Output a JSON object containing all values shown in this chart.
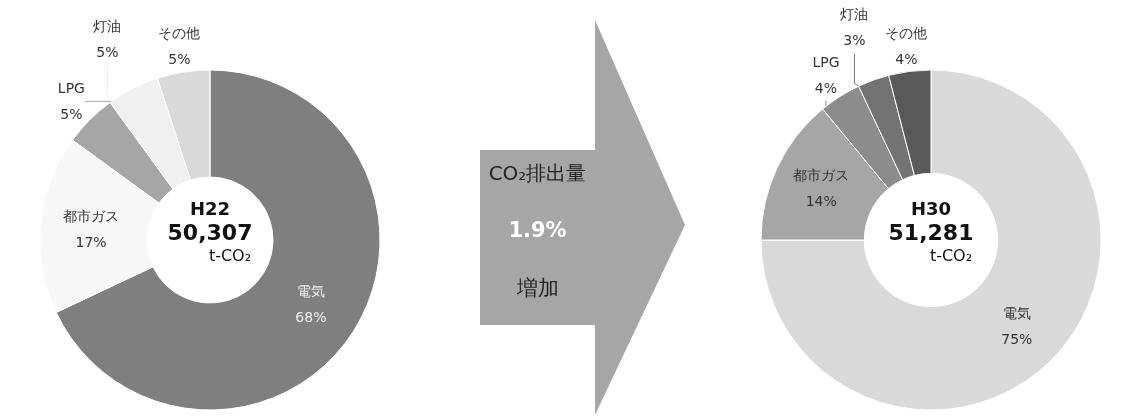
{
  "chart_data": [
    {
      "type": "donut",
      "title": "H22",
      "annotations": [
        "50,307",
        "t-CO₂"
      ],
      "categories": [
        "電気",
        "都市ガス",
        "LPG",
        "灯油",
        "その他"
      ],
      "values": [
        68,
        17,
        5,
        5,
        5
      ],
      "value_labels": [
        "68%",
        "17%",
        "5%",
        "5%",
        "5%"
      ],
      "colors": [
        "#7f7f7f",
        "#f7f7f7",
        "#a6a6a6",
        "#f0f0f0",
        "#d9d9d9"
      ]
    },
    {
      "type": "other",
      "annotations": [
        "CO₂排出量",
        "1.9%",
        "増加"
      ]
    },
    {
      "type": "donut",
      "title": "H30",
      "annotations": [
        "51,281",
        "t-CO₂"
      ],
      "categories": [
        "電気",
        "都市ガス",
        "LPG",
        "灯油",
        "その他"
      ],
      "values": [
        75,
        14,
        4,
        3,
        4
      ],
      "value_labels": [
        "75%",
        "14%",
        "4%",
        "3%",
        "4%"
      ],
      "colors": [
        "#d9d9d9",
        "#a6a6a6",
        "#8c8c8c",
        "#737373",
        "#595959"
      ]
    }
  ]
}
